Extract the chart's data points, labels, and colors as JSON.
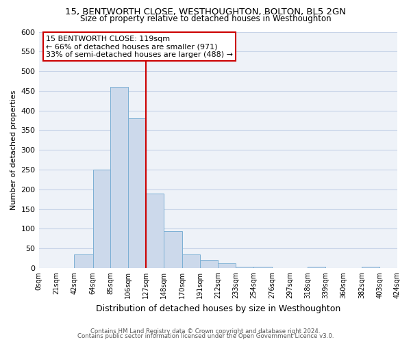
{
  "title": "15, BENTWORTH CLOSE, WESTHOUGHTON, BOLTON, BL5 2GN",
  "subtitle": "Size of property relative to detached houses in Westhoughton",
  "xlabel": "Distribution of detached houses by size in Westhoughton",
  "ylabel": "Number of detached properties",
  "bar_edges": [
    0,
    21,
    42,
    64,
    85,
    106,
    127,
    148,
    170,
    191,
    212,
    233,
    254,
    276,
    297,
    318,
    339,
    360,
    382,
    403,
    424
  ],
  "bar_heights": [
    0,
    0,
    35,
    250,
    460,
    380,
    190,
    93,
    35,
    20,
    12,
    3,
    3,
    0,
    0,
    3,
    0,
    0,
    3,
    0
  ],
  "bar_color": "#ccd9eb",
  "bar_edge_color": "#7bafd4",
  "vline_x": 127,
  "vline_color": "#cc0000",
  "ylim": [
    0,
    600
  ],
  "yticks": [
    0,
    50,
    100,
    150,
    200,
    250,
    300,
    350,
    400,
    450,
    500,
    550,
    600
  ],
  "xtick_labels": [
    "0sqm",
    "21sqm",
    "42sqm",
    "64sqm",
    "85sqm",
    "106sqm",
    "127sqm",
    "148sqm",
    "170sqm",
    "191sqm",
    "212sqm",
    "233sqm",
    "254sqm",
    "276sqm",
    "297sqm",
    "318sqm",
    "339sqm",
    "360sqm",
    "382sqm",
    "403sqm",
    "424sqm"
  ],
  "annotation_title": "15 BENTWORTH CLOSE: 119sqm",
  "annotation_line1": "← 66% of detached houses are smaller (971)",
  "annotation_line2": "33% of semi-detached houses are larger (488) →",
  "box_edge_color": "#cc0000",
  "background_color": "#ffffff",
  "plot_bg_color": "#eef2f8",
  "grid_color": "#c8d4e8",
  "footer_line1": "Contains HM Land Registry data © Crown copyright and database right 2024.",
  "footer_line2": "Contains public sector information licensed under the Open Government Licence v3.0."
}
